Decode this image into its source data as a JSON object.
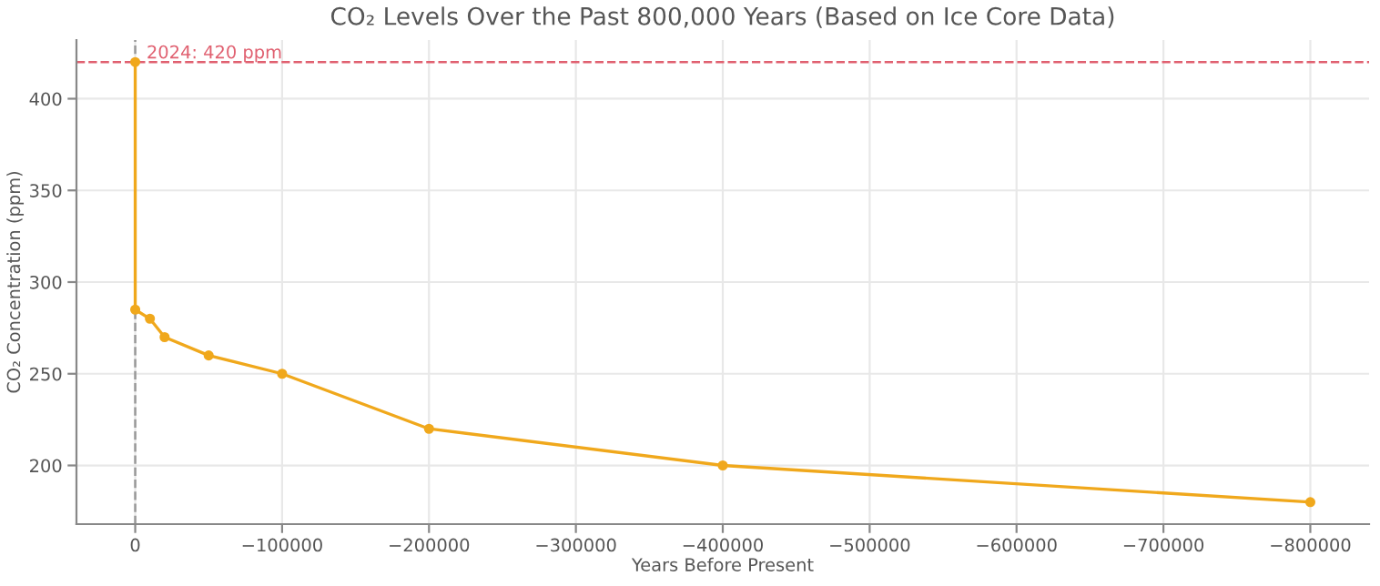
{
  "chart_data": {
    "type": "line",
    "title": "CO₂ Levels Over the Past 800,000 Years (Based on Ice Core Data)",
    "xlabel": "Years Before Present",
    "ylabel": "CO₂ Concentration (ppm)",
    "series": [
      {
        "x": [
          0,
          0,
          -10000,
          -20000,
          -50000,
          -100000,
          -200000,
          -400000,
          -800000
        ],
        "values": [
          420,
          285,
          280,
          270,
          260,
          250,
          220,
          200,
          180
        ],
        "color": "#f0a81c"
      }
    ],
    "marker": "circle",
    "line_style": "solid",
    "xlim": [
      40000,
      -840000
    ],
    "xticks": [
      0,
      -100000,
      -200000,
      -300000,
      -400000,
      -500000,
      -600000,
      -700000,
      -800000
    ],
    "ylim": [
      168,
      432
    ],
    "yticks": [
      200,
      250,
      300,
      350,
      400
    ],
    "grid": true,
    "ref_lines": [
      {
        "axis": "y",
        "value": 420,
        "label": "2024: 420 ppm",
        "color": "#e06070",
        "line_style": "dashed"
      },
      {
        "axis": "x",
        "value": 0,
        "label": null,
        "color": "#999999",
        "line_style": "dashed"
      }
    ]
  }
}
